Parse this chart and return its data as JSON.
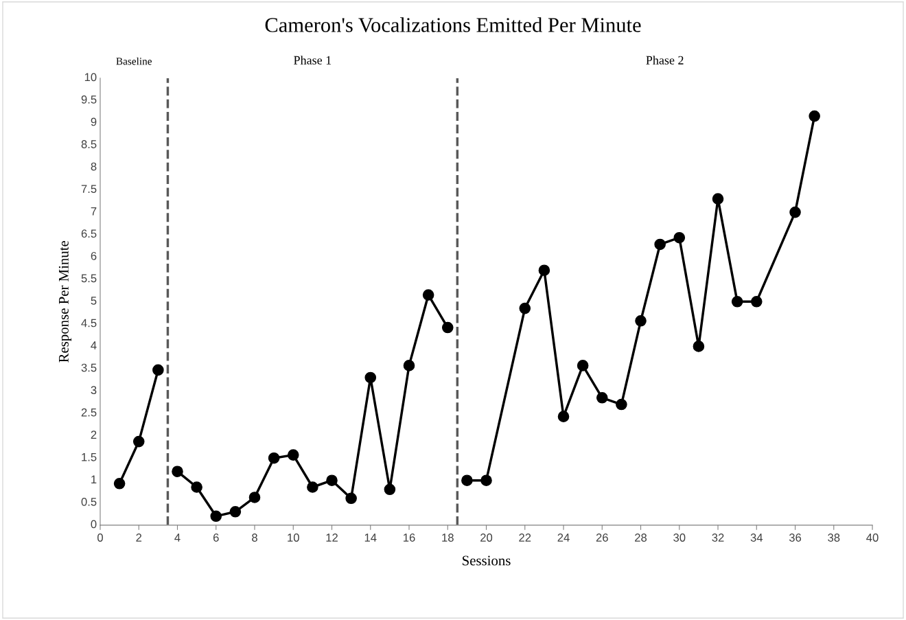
{
  "chart_data": {
    "type": "line",
    "title": "Cameron's Vocalizations Emitted Per Minute",
    "xlabel": "Sessions",
    "ylabel": "Response Per Minute",
    "series": [
      {
        "color": "#000000",
        "x": [
          1,
          2,
          3
        ],
        "values": [
          0.93,
          1.87,
          3.47
        ]
      },
      {
        "color": "#000000",
        "x": [
          4,
          5,
          6,
          7,
          8,
          9,
          10,
          11,
          12,
          13,
          14,
          15,
          16,
          17,
          18
        ],
        "values": [
          1.2,
          0.85,
          0.2,
          0.3,
          0.62,
          1.5,
          1.57,
          0.85,
          1.0,
          0.6,
          3.3,
          0.8,
          3.57,
          5.15,
          4.42
        ]
      },
      {
        "color": "#000000",
        "x": [
          19,
          20,
          22,
          23,
          24,
          25,
          26,
          27,
          28,
          29,
          30,
          31,
          32,
          33,
          34,
          36,
          37
        ],
        "values": [
          1.0,
          1.0,
          4.85,
          5.7,
          2.43,
          3.57,
          2.85,
          2.7,
          4.57,
          6.28,
          6.43,
          4.0,
          7.3,
          5.0,
          5.0,
          7.0,
          9.15
        ]
      }
    ],
    "xlim": [
      0,
      40
    ],
    "xticks": [
      0,
      2,
      4,
      6,
      8,
      10,
      12,
      14,
      16,
      18,
      20,
      22,
      24,
      26,
      28,
      30,
      32,
      34,
      36,
      38,
      40
    ],
    "ylim": [
      0,
      10
    ],
    "yticks": [
      0,
      0.5,
      1,
      1.5,
      2,
      2.5,
      3,
      3.5,
      4,
      4.5,
      5,
      5.5,
      6,
      6.5,
      7,
      7.5,
      8,
      8.5,
      9,
      9.5,
      10
    ],
    "ref_lines": [
      {
        "axis": "x",
        "value": 3.5,
        "color": "#595959",
        "line_style": "dashed"
      },
      {
        "axis": "x",
        "value": 18.5,
        "color": "#595959",
        "line_style": "dashed"
      }
    ],
    "annotations": [
      "Baseline",
      "Phase 1",
      "Phase 2"
    ],
    "grid": false,
    "legend": false,
    "marker": "circle",
    "line_style": "solid"
  }
}
